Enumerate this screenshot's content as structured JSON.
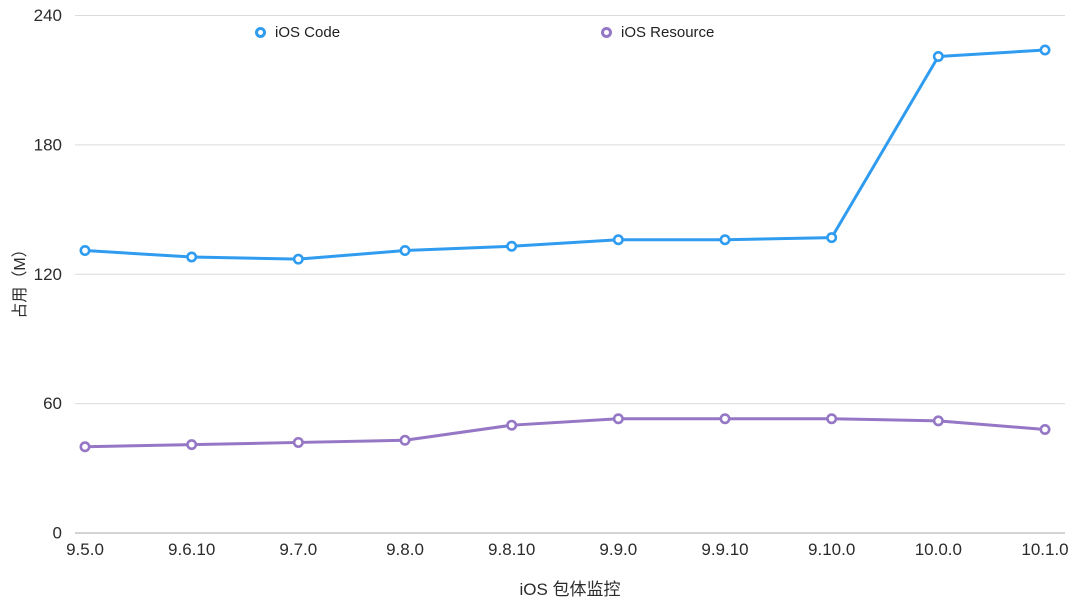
{
  "chart_data": {
    "type": "line",
    "title": "",
    "categories": [
      "9.5.0",
      "9.6.10",
      "9.7.0",
      "9.8.0",
      "9.8.10",
      "9.9.0",
      "9.9.10",
      "9.10.0",
      "10.0.0",
      "10.1.0"
    ],
    "series": [
      {
        "name": "iOS Code",
        "color": "#2f9cf0",
        "values": [
          131,
          128,
          127,
          131,
          133,
          136,
          136,
          137,
          221,
          224
        ]
      },
      {
        "name": "iOS Resource",
        "color": "#9577c5",
        "values": [
          40,
          41,
          42,
          43,
          50,
          53,
          53,
          53,
          52,
          48
        ]
      }
    ],
    "xlabel": "iOS 包体监控",
    "ylabel": "占用（M）",
    "ylim": [
      0,
      240
    ],
    "yticks": [
      0,
      60,
      120,
      180,
      240
    ],
    "grid": true,
    "legend_position": "top",
    "colors": {
      "gridline": "#dcdcdc",
      "baseline": "#a8a8a8",
      "tick_text": "#2b2b2b",
      "marker_fill": "#ffffff"
    }
  }
}
